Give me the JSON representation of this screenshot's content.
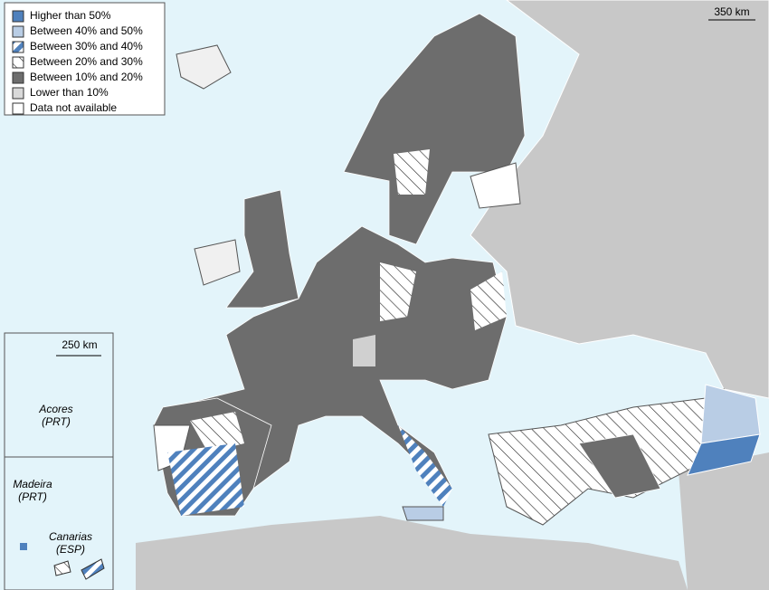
{
  "legend": {
    "items": [
      "Higher than 50%",
      "Between 40% and 50%",
      "Between 30% and 40%",
      "Between 20% and 30%",
      "Between 10% and 20%",
      "Lower than 10%",
      "Data not available"
    ]
  },
  "scale_bars": [
    "350 km",
    "250 km"
  ],
  "insets": [
    {
      "name": "Acores",
      "country": "(PRT)"
    },
    {
      "name": "Madeira",
      "country": "(PRT)"
    },
    {
      "name": "Canarias",
      "country": "(ESP)"
    }
  ]
}
